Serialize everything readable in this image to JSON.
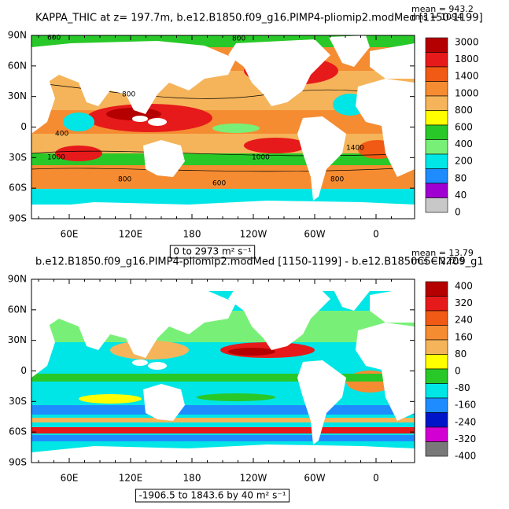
{
  "panels": [
    {
      "title": "KAPPA_THIC at z= 197.7m, b.e12.B1850.f09_g16.PIMP4-pliomip2.modMed [1150-1199]",
      "stats": [
        "mean = 943.2",
        "rms = 1094"
      ],
      "lat_labels": [
        "90N",
        "60N",
        "30N",
        "0",
        "30S",
        "60S",
        "90S"
      ],
      "lon_labels": [
        "60E",
        "120E",
        "180",
        "120W",
        "60W",
        "0"
      ],
      "range_label": "0 to 2973 m² s⁻¹",
      "contour_labels": [
        "600",
        "800",
        "800",
        "400",
        "1000",
        "800",
        "1000",
        "1400",
        "600",
        "800"
      ],
      "colorbar": {
        "labels": [
          "3000",
          "1800",
          "1400",
          "1000",
          "800",
          "600",
          "400",
          "200",
          "80",
          "40",
          "0"
        ],
        "colors": [
          "#b40000",
          "#e61a1a",
          "#f05a14",
          "#f58c32",
          "#f5b45a",
          "#ffff00",
          "#28c828",
          "#78f078",
          "#00e6e6",
          "#1e8cff",
          "#a000d2",
          "#c8c8c8"
        ]
      }
    },
    {
      "title": "b.e12.B1850.f09_g16.PIMP4-pliomip2.modMed [1150-1199] - b.e12.B1850C5CN.f09_g1",
      "stats": [
        "mean = 13.79",
        "rms = 222.5"
      ],
      "lat_labels": [
        "90N",
        "60N",
        "30N",
        "0",
        "30S",
        "60S",
        "90S"
      ],
      "lon_labels": [
        "60E",
        "120E",
        "180",
        "120W",
        "60W",
        "0"
      ],
      "range_label": "-1906.5 to 1843.6 by 40 m² s⁻¹",
      "contour_labels": [],
      "colorbar": {
        "labels": [
          "400",
          "320",
          "240",
          "160",
          "80",
          "0",
          "-80",
          "-160",
          "-240",
          "-320",
          "-400"
        ],
        "colors": [
          "#b40000",
          "#e61a1a",
          "#f05a14",
          "#f58c32",
          "#f5b45a",
          "#ffff00",
          "#28c828",
          "#00e6e6",
          "#1e8cff",
          "#0014c8",
          "#d200d2",
          "#787878"
        ]
      }
    }
  ]
}
